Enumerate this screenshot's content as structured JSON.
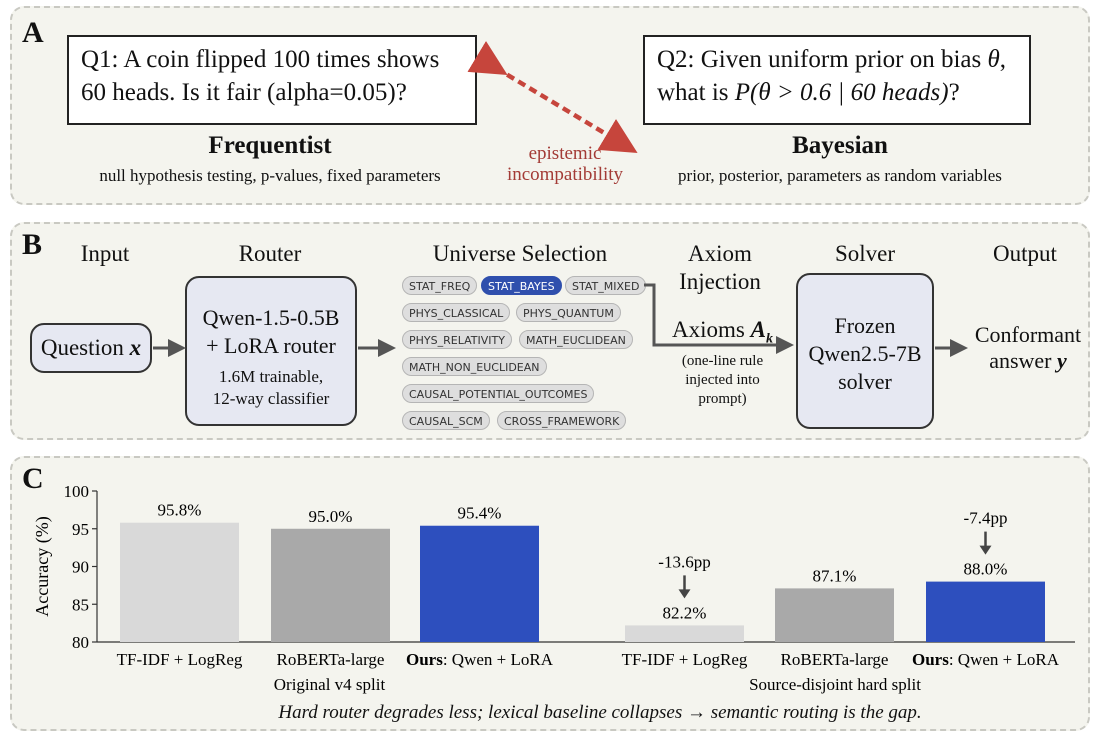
{
  "panel_a": {
    "label": "A",
    "q1": {
      "line1": "Q1: A coin flipped 100 times shows",
      "line2": "60 heads. Is it fair (alpha=0.05)?"
    },
    "q2": {
      "line1_pre": "Q2: Given uniform prior on bias ",
      "theta": "θ",
      "line1_post": ",",
      "line2_pre": "what is ",
      "expr": "P(θ > 0.6 | 60 heads)",
      "line2_post": "?"
    },
    "freq_title": "Frequentist",
    "freq_sub": "null hypothesis testing, p-values, fixed parameters",
    "bayes_title": "Bayesian",
    "bayes_sub": "prior, posterior, parameters as random variables",
    "incompat_1": "epistemic",
    "incompat_2": "incompatibility"
  },
  "panel_b": {
    "label": "B",
    "stages": {
      "input": "Input",
      "router": "Router",
      "universe": "Universe Selection",
      "axiom_1": "Axiom",
      "axiom_2": "Injection",
      "solver": "Solver",
      "output": "Output"
    },
    "question": "Question",
    "question_var": "x",
    "router_box": {
      "line1": "Qwen-1.5-0.5B",
      "line2": "+ LoRA router",
      "line3": "1.6M trainable,",
      "line4": "12-way classifier"
    },
    "universes": [
      "STAT_FREQ",
      "STAT_BAYES",
      "STAT_MIXED",
      "PHYS_CLASSICAL",
      "PHYS_QUANTUM",
      "PHYS_RELATIVITY",
      "MATH_EUCLIDEAN",
      "MATH_NON_EUCLIDEAN",
      "CAUSAL_POTENTIAL_OUTCOMES",
      "CAUSAL_SCM",
      "CROSS_FRAMEWORK"
    ],
    "selected_universe": "STAT_BAYES",
    "axioms_label": "Axioms",
    "axioms_var": "A",
    "axioms_sub": "k",
    "axiom_note": {
      "line1": "(one-line rule",
      "line2": "injected into",
      "line3": "prompt)"
    },
    "solver_box": {
      "line1": "Frozen",
      "line2": "Qwen2.5-7B",
      "line3": "solver"
    },
    "output_1": "Conformant",
    "output_2": "answer",
    "output_var": "y"
  },
  "panel_c": {
    "label": "C",
    "caption": "Hard router degrades less; lexical baseline collapses → semantic routing is the gap."
  },
  "colors": {
    "light_gray": "#d9d9d9",
    "mid_gray": "#a9a9a9",
    "blue": "#2d4fbe",
    "red_arrow": "#c0392b"
  },
  "chart_data": {
    "type": "bar",
    "ylabel": "Accuracy (%)",
    "ylim": [
      80,
      100
    ],
    "yticks": [
      80,
      85,
      90,
      95,
      100
    ],
    "groups": [
      {
        "name": "Original v4 split",
        "bars": [
          {
            "label": "TF-IDF + LogReg",
            "value": 95.8,
            "value_label": "95.8%",
            "color": "#d9d9d9"
          },
          {
            "label": "RoBERTa-large",
            "value": 95.0,
            "value_label": "95.0%",
            "color": "#a9a9a9"
          },
          {
            "label_bold": "Ours",
            "label": ": Qwen + LoRA",
            "value": 95.4,
            "value_label": "95.4%",
            "color": "#2d4fbe"
          }
        ]
      },
      {
        "name": "Source-disjoint hard split",
        "bars": [
          {
            "label": "TF-IDF + LogReg",
            "value": 82.2,
            "value_label": "82.2%",
            "color": "#d9d9d9",
            "delta": "-13.6pp"
          },
          {
            "label": "RoBERTa-large",
            "value": 87.1,
            "value_label": "87.1%",
            "color": "#a9a9a9"
          },
          {
            "label_bold": "Ours",
            "label": ": Qwen + LoRA",
            "value": 88.0,
            "value_label": "88.0%",
            "color": "#2d4fbe",
            "delta": "-7.4pp"
          }
        ]
      }
    ]
  }
}
